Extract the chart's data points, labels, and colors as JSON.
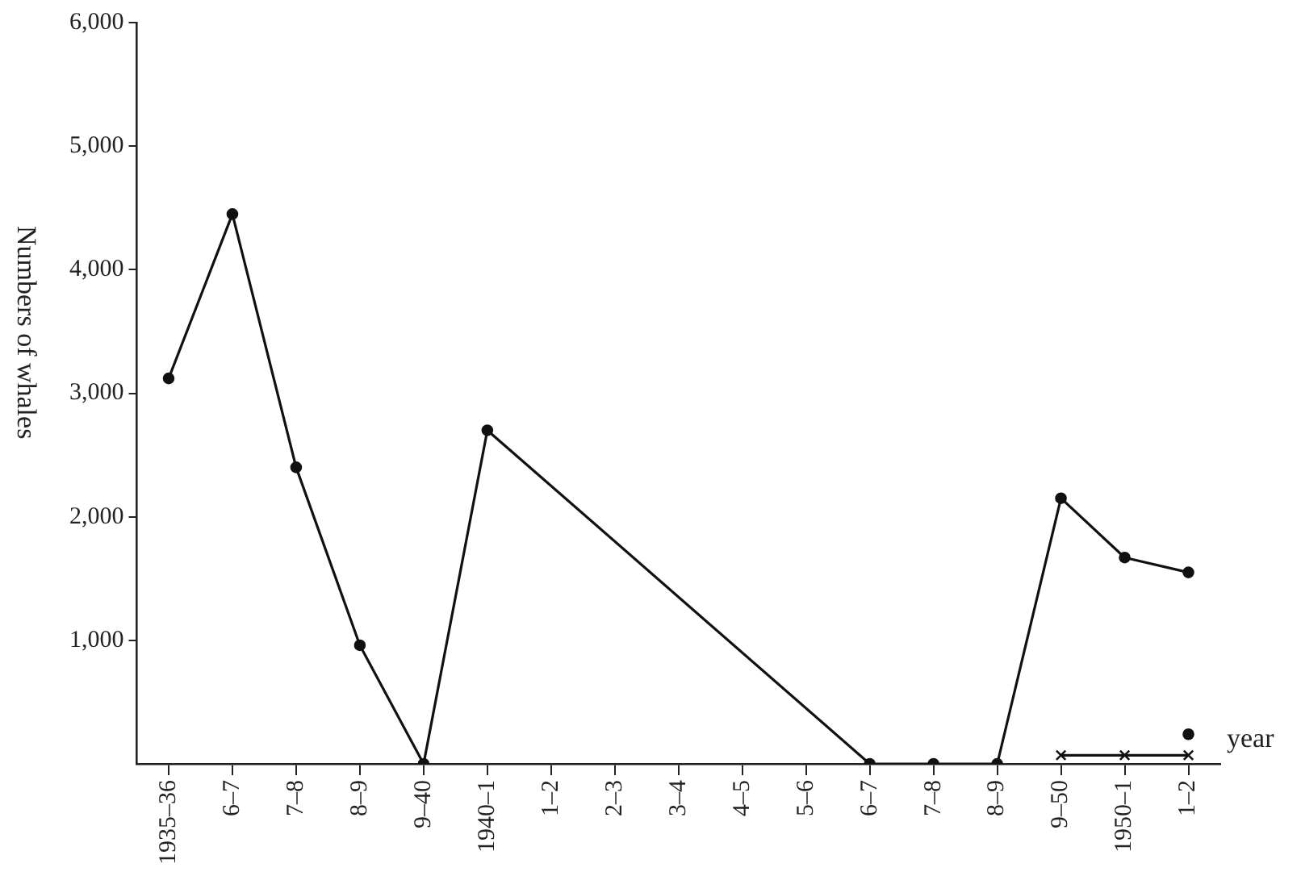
{
  "chart_data": {
    "type": "line",
    "ylabel": "Numbers of whales",
    "xlabel": "year",
    "categories": [
      "1935–36",
      "6–7",
      "7–8",
      "8–9",
      "9–40",
      "1940–1",
      "1–2",
      "2–3",
      "3–4",
      "4–5",
      "5–6",
      "6–7",
      "7–8",
      "8–9",
      "9–50",
      "1950–1",
      "1–2"
    ],
    "series": [
      {
        "color": "#111111",
        "marker": "circle",
        "values": [
          3120,
          4450,
          2400,
          960,
          0,
          2700,
          null,
          null,
          null,
          null,
          null,
          0,
          0,
          0,
          2150,
          1670,
          1550
        ]
      },
      {
        "color": "#111111",
        "marker": "cross",
        "values": [
          null,
          null,
          null,
          null,
          null,
          null,
          null,
          null,
          null,
          null,
          null,
          null,
          null,
          null,
          70,
          70,
          70
        ]
      },
      {
        "type": "scatter",
        "color": "#111111",
        "marker": "circle",
        "values": [
          null,
          null,
          null,
          null,
          null,
          null,
          null,
          null,
          null,
          null,
          null,
          null,
          null,
          null,
          null,
          null,
          240
        ]
      }
    ],
    "ylim": [
      0,
      6000
    ],
    "yticks": [
      {
        "value": 1000,
        "label": "1,000"
      },
      {
        "value": 2000,
        "label": "2,000"
      },
      {
        "value": 3000,
        "label": "3,000"
      },
      {
        "value": 4000,
        "label": "4,000"
      },
      {
        "value": 5000,
        "label": "5,000"
      },
      {
        "value": 6000,
        "label": "6,000"
      }
    ],
    "grid": false,
    "legend": false
  }
}
